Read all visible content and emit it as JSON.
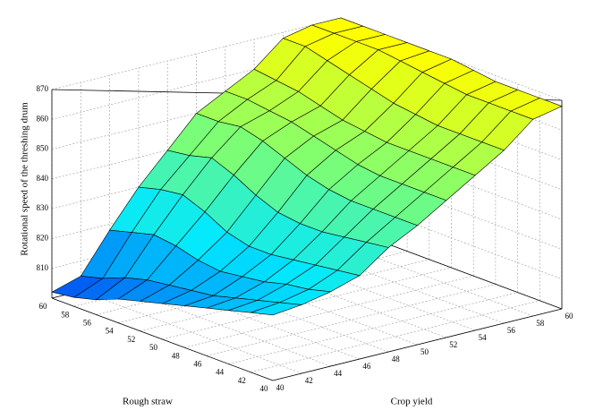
{
  "chart_data": {
    "type": "surface",
    "xlabel": "Crop yield",
    "ylabel": "Rough straw",
    "zlabel": "Rotational speed of the threshing drum",
    "x": [
      40,
      42,
      44,
      46,
      48,
      50,
      52,
      54,
      56,
      58,
      60
    ],
    "y": [
      40,
      42,
      44,
      46,
      48,
      50,
      52,
      54,
      56,
      58,
      60
    ],
    "z": [
      [
        822,
        823,
        825,
        828,
        835,
        840,
        846,
        852,
        858,
        866,
        868
      ],
      [
        820,
        821,
        823,
        827,
        834,
        840,
        846,
        852,
        858,
        866,
        868
      ],
      [
        818,
        819,
        822,
        826,
        833,
        840,
        846,
        852,
        858,
        866,
        868
      ],
      [
        816,
        817,
        820,
        825,
        832,
        840,
        846,
        852,
        858,
        866,
        868
      ],
      [
        814,
        815,
        819,
        824,
        832,
        841,
        847,
        852,
        859,
        867,
        869
      ],
      [
        812,
        814,
        818,
        824,
        833,
        843,
        849,
        853,
        860,
        868,
        870
      ],
      [
        810,
        813,
        819,
        826,
        836,
        846,
        851,
        854,
        862,
        869,
        870
      ],
      [
        808,
        812,
        821,
        830,
        840,
        849,
        853,
        856,
        864,
        870,
        870
      ],
      [
        805,
        810,
        822,
        833,
        843,
        851,
        854,
        858,
        866,
        870,
        870
      ],
      [
        803,
        807,
        820,
        832,
        841,
        850,
        855,
        859,
        868,
        870,
        870
      ],
      [
        802,
        805,
        818,
        830,
        840,
        850,
        855,
        860,
        868,
        870,
        870
      ]
    ],
    "xlim": [
      40,
      60
    ],
    "ylim": [
      40,
      60
    ],
    "zlim": [
      800,
      870
    ],
    "xticks": [
      40,
      42,
      44,
      46,
      48,
      50,
      52,
      54,
      56,
      58,
      60
    ],
    "yticks": [
      40,
      42,
      44,
      46,
      48,
      50,
      52,
      54,
      56,
      58,
      60
    ],
    "zticks": [
      810,
      820,
      830,
      840,
      850,
      860,
      870
    ],
    "grid": true,
    "colormap": [
      "#0040f0",
      "#00e8ff",
      "#80ff70",
      "#ffff00"
    ]
  }
}
